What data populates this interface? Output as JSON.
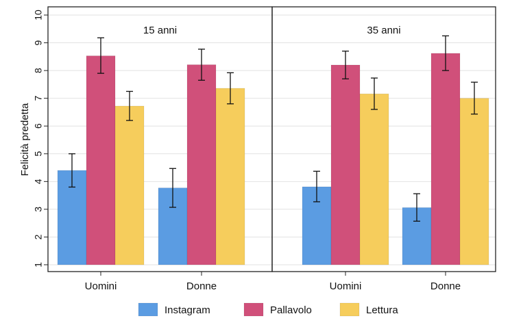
{
  "chart_data": {
    "type": "bar",
    "ylabel": "Felicità predetta",
    "ylim": [
      1,
      10
    ],
    "yticks": [
      1,
      2,
      3,
      4,
      5,
      6,
      7,
      8,
      9,
      10
    ],
    "grid": true,
    "legend_position": "bottom",
    "categories": [
      "Uomini",
      "Donne"
    ],
    "panels": [
      {
        "title": "15 anni",
        "series": [
          {
            "name": "Instagram",
            "values": [
              4.4,
              3.77
            ],
            "ci_low": [
              3.8,
              3.07
            ],
            "ci_high": [
              5.0,
              4.47
            ]
          },
          {
            "name": "Pallavolo",
            "values": [
              8.53,
              8.21
            ],
            "ci_low": [
              7.9,
              7.65
            ],
            "ci_high": [
              9.18,
              8.77
            ]
          },
          {
            "name": "Lettura",
            "values": [
              6.72,
              7.36
            ],
            "ci_low": [
              6.2,
              6.8
            ],
            "ci_high": [
              7.25,
              7.92
            ]
          }
        ]
      },
      {
        "title": "35 anni",
        "series": [
          {
            "name": "Instagram",
            "values": [
              3.81,
              3.06
            ],
            "ci_low": [
              3.27,
              2.57
            ],
            "ci_high": [
              4.37,
              3.56
            ]
          },
          {
            "name": "Pallavolo",
            "values": [
              8.2,
              8.62
            ],
            "ci_low": [
              7.7,
              8.0
            ],
            "ci_high": [
              8.7,
              9.25
            ]
          },
          {
            "name": "Lettura",
            "values": [
              7.16,
              7.0
            ],
            "ci_low": [
              6.6,
              6.43
            ],
            "ci_high": [
              7.73,
              7.58
            ]
          }
        ]
      }
    ],
    "colors": {
      "Instagram": "#5b9ce2",
      "Pallavolo": "#d0507a",
      "Lettura": "#f6cd5c",
      "grid": "#e2e2e2",
      "frame": "#222222"
    }
  }
}
